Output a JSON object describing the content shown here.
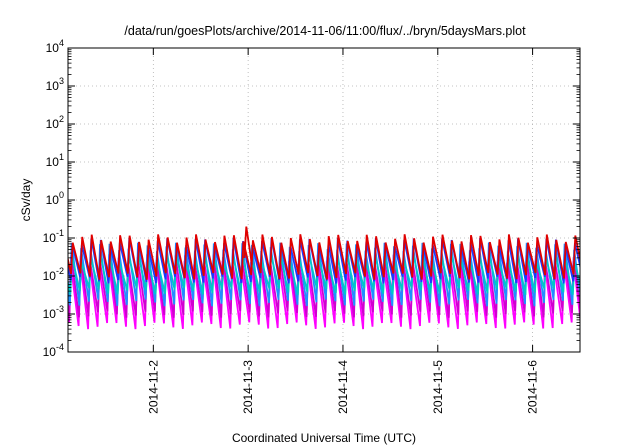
{
  "chart_data": {
    "type": "line",
    "title": "/data/run/goesPlots/archive/2014-11-06/11:00/flux/../bryn/5daysMars.plot",
    "xlabel": "Coordinated Universal Time (UTC)",
    "ylabel": "cSv/day",
    "yscale": "log",
    "ylim": [
      0.0001,
      10000
    ],
    "y_ticks": [
      {
        "value": 0.0001,
        "mant": "10",
        "exp": "-4"
      },
      {
        "value": 0.001,
        "mant": "10",
        "exp": "-3"
      },
      {
        "value": 0.01,
        "mant": "10",
        "exp": "-2"
      },
      {
        "value": 0.1,
        "mant": "10",
        "exp": "-1"
      },
      {
        "value": 1,
        "mant": "10",
        "exp": "0"
      },
      {
        "value": 10,
        "mant": "10",
        "exp": "1"
      },
      {
        "value": 100,
        "mant": "10",
        "exp": "2"
      },
      {
        "value": 1000,
        "mant": "10",
        "exp": "3"
      },
      {
        "value": 10000,
        "mant": "10",
        "exp": "4"
      }
    ],
    "x_range_days": [
      1.1,
      6.5
    ],
    "x_ticks": [
      {
        "day": 2,
        "label": "2014-11-2"
      },
      {
        "day": 3,
        "label": "2014-11-3"
      },
      {
        "day": 4,
        "label": "2014-11-4"
      },
      {
        "day": 5,
        "label": "2014-11-5"
      },
      {
        "day": 6,
        "label": "2014-11-6"
      }
    ],
    "grid": true,
    "period_days": 0.1,
    "series": [
      {
        "color": "#ff00ff",
        "lo": 0.0005,
        "hi": 0.02
      },
      {
        "color": "#d000d0",
        "lo": 0.001,
        "hi": 0.03
      },
      {
        "color": "#1e90ff",
        "lo": 0.002,
        "hi": 0.06
      },
      {
        "color": "#00c8c8",
        "lo": 0.004,
        "hi": 0.03
      },
      {
        "color": "#1a3aff",
        "lo": 0.008,
        "hi": 0.08
      },
      {
        "color": "#e00000",
        "lo": 0.01,
        "hi": 0.1
      }
    ],
    "peak_spike": {
      "day": 2.98,
      "value": 0.2,
      "color": "#e00000"
    }
  }
}
